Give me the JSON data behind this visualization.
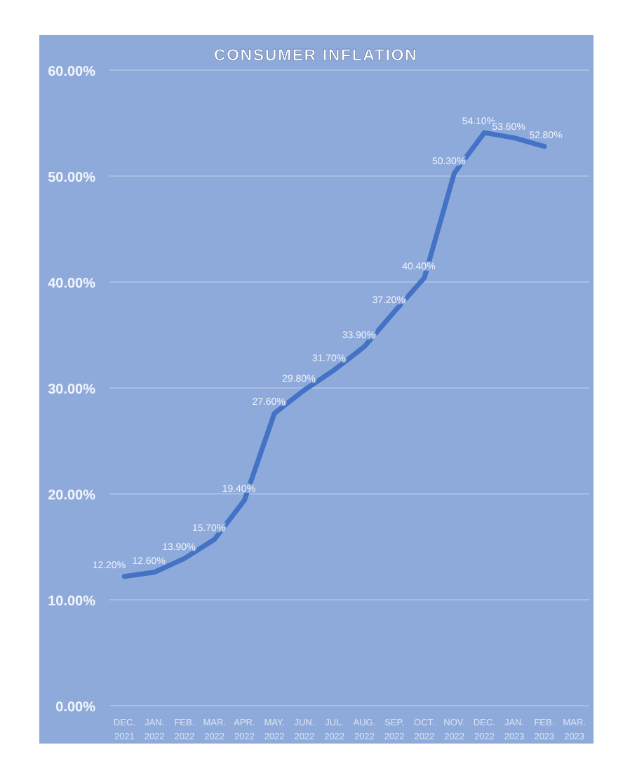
{
  "chart_data": {
    "type": "line",
    "title": "CONSUMER INFLATION",
    "categories": [
      "DEC. 2021",
      "JAN. 2022",
      "FEB. 2022",
      "MAR. 2022",
      "APR. 2022",
      "MAY. 2022",
      "JUN. 2022",
      "JUL. 2022",
      "AUG. 2022",
      "SEP. 2022",
      "OCT. 2022",
      "NOV. 2022",
      "DEC. 2022",
      "JAN. 2023",
      "FEB. 2023",
      "MAR. 2023"
    ],
    "series": [
      {
        "color": "#4472c4",
        "values": [
          12.2,
          12.6,
          13.9,
          15.7,
          19.4,
          27.6,
          29.8,
          31.7,
          33.9,
          37.2,
          40.4,
          50.3,
          54.1,
          53.6,
          52.8,
          null
        ],
        "value_labels": [
          "12.20%",
          "12.60%",
          "13.90%",
          "15.70%",
          "19.40%",
          "27.60%",
          "29.80%",
          "31.70%",
          "33.90%",
          "37.20%",
          "40.40%",
          "50.30%",
          "54.10%",
          "53.60%",
          "52.80%",
          null
        ]
      }
    ],
    "ylim": [
      0,
      60
    ],
    "yticks": [
      {
        "value": 0,
        "label": "0.00%"
      },
      {
        "value": 10,
        "label": "10.00%"
      },
      {
        "value": 20,
        "label": "20.00%"
      },
      {
        "value": 30,
        "label": "30.00%"
      },
      {
        "value": 40,
        "label": "40.00%"
      },
      {
        "value": 50,
        "label": "50.00%"
      },
      {
        "value": 60,
        "label": "60.00%"
      }
    ],
    "grid": "y",
    "marker": "none",
    "line_style": "solid"
  }
}
